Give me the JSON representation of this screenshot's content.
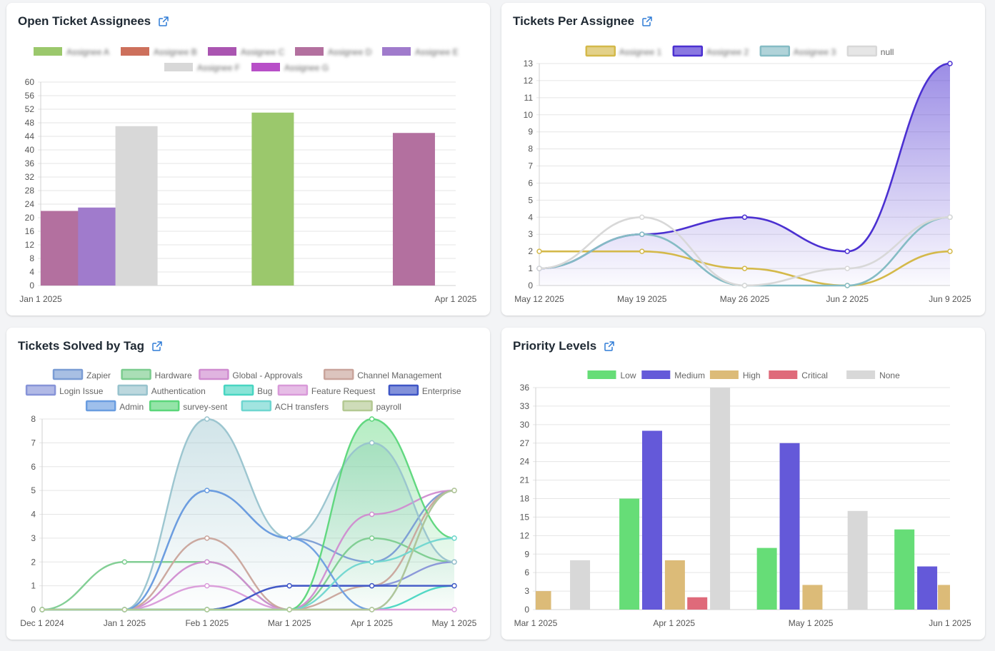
{
  "cards": [
    {
      "title": "Open Ticket Assignees"
    },
    {
      "title": "Tickets Per Assignee"
    },
    {
      "title": "Tickets Solved by Tag"
    },
    {
      "title": "Priority Levels"
    }
  ],
  "external_icon": "external-link-icon",
  "chart_data": [
    {
      "id": "chart-1",
      "type": "bar",
      "title": "Open Ticket Assignees",
      "legend": [
        {
          "label": "Assignee A",
          "color": "#9bc86c",
          "blurred": true
        },
        {
          "label": "Assignee B",
          "color": "#cd705c",
          "blurred": true
        },
        {
          "label": "Assignee C",
          "color": "#aa55b1",
          "blurred": true
        },
        {
          "label": "Assignee D",
          "color": "#b3709f",
          "blurred": true
        },
        {
          "label": "Assignee E",
          "color": "#a07bcc",
          "blurred": true
        },
        {
          "label": "Assignee F",
          "color": "#d8d8d8",
          "blurred": true
        },
        {
          "label": "Assignee G",
          "color": "#b84fc8",
          "blurred": true
        }
      ],
      "bars": [
        {
          "x": 0.0,
          "value": 22,
          "color": "#b3709f"
        },
        {
          "x": 0.09,
          "value": 23,
          "color": "#a07bcc"
        },
        {
          "x": 0.18,
          "value": 47,
          "color": "#d8d8d8"
        },
        {
          "x": 0.61,
          "value": 51,
          "color": "#9bc86c"
        },
        {
          "x": 0.95,
          "value": 45,
          "color": "#b3709f"
        }
      ],
      "xticks": [
        "Jan 1 2025",
        "Apr 1 2025"
      ],
      "ylim": [
        0,
        60
      ],
      "ystep": 4
    },
    {
      "id": "chart-2",
      "type": "line",
      "title": "Tickets Per Assignee",
      "categories": [
        "May 12 2025",
        "May 19 2025",
        "May 26 2025",
        "Jun 2 2025",
        "Jun 9 2025"
      ],
      "ylim": [
        0,
        13
      ],
      "ystep": 1,
      "series": [
        {
          "name": "Assignee 1",
          "color": "#d4b94a",
          "blurred": true,
          "values": [
            2,
            2,
            1,
            0,
            2
          ]
        },
        {
          "name": "Assignee 2",
          "color": "#4b30d1",
          "blurred": true,
          "values": [
            1,
            3,
            4,
            2,
            13
          ],
          "fill": true
        },
        {
          "name": "Assignee 3",
          "color": "#85bcc4",
          "blurred": true,
          "values": [
            1,
            3,
            0,
            0,
            4
          ]
        },
        {
          "name": "null",
          "color": "#d8d8d8",
          "blurred": false,
          "values": [
            1,
            4,
            0,
            1,
            4
          ]
        }
      ]
    },
    {
      "id": "chart-3",
      "type": "line",
      "title": "Tickets Solved by Tag",
      "categories": [
        "Dec 1 2024",
        "Jan 1 2025",
        "Feb 1 2025",
        "Mar 1 2025",
        "Apr 1 2025",
        "May 1 2025"
      ],
      "ylim": [
        0,
        8
      ],
      "ystep": 1,
      "series": [
        {
          "name": "Zapier",
          "color": "#7a9cd4",
          "values": [
            0,
            0,
            5,
            3,
            2,
            5
          ]
        },
        {
          "name": "Hardware",
          "color": "#7ccc8f",
          "values": [
            0,
            2,
            2,
            0,
            3,
            2
          ]
        },
        {
          "name": "Global - Approvals",
          "color": "#d08cd0",
          "values": [
            0,
            0,
            2,
            0,
            4,
            5
          ]
        },
        {
          "name": "Channel Management",
          "color": "#c9a49b",
          "values": [
            0,
            0,
            3,
            0,
            1,
            5
          ]
        },
        {
          "name": "Login Issue",
          "color": "#8794d8",
          "values": [
            0,
            0,
            0,
            1,
            1,
            2
          ]
        },
        {
          "name": "Authentication",
          "color": "#98c3cd",
          "values": [
            0,
            0,
            8,
            3,
            7,
            2
          ],
          "fill": true
        },
        {
          "name": "Bug",
          "color": "#49d6c2",
          "values": [
            0,
            0,
            0,
            0,
            0,
            1
          ]
        },
        {
          "name": "Feature Request",
          "color": "#d99ad9",
          "values": [
            0,
            0,
            1,
            0,
            0,
            0
          ]
        },
        {
          "name": "Enterprise",
          "color": "#3f56c6",
          "values": [
            0,
            0,
            0,
            1,
            1,
            1
          ]
        },
        {
          "name": "Admin",
          "color": "#6a9de0",
          "values": [
            0,
            0,
            5,
            3,
            0,
            5
          ]
        },
        {
          "name": "survey-sent",
          "color": "#5bd67a",
          "values": [
            0,
            0,
            0,
            0,
            8,
            3
          ],
          "fill": true
        },
        {
          "name": "ACH transfers",
          "color": "#6fd6d0",
          "values": [
            0,
            0,
            0,
            0,
            2,
            3
          ]
        },
        {
          "name": "payroll",
          "color": "#b4c993",
          "values": [
            0,
            0,
            0,
            0,
            0,
            5
          ]
        }
      ]
    },
    {
      "id": "chart-4",
      "type": "bar",
      "title": "Priority Levels",
      "series": [
        {
          "name": "Low",
          "color": "#66dd77"
        },
        {
          "name": "Medium",
          "color": "#6459d9"
        },
        {
          "name": "High",
          "color": "#dcbb78"
        },
        {
          "name": "Critical",
          "color": "#df6a7a"
        },
        {
          "name": "None",
          "color": "#d8d8d8"
        }
      ],
      "xticks": [
        "Mar 1 2025",
        "Apr 1 2025",
        "May 1 2025",
        "Jun 1 2025"
      ],
      "bars": [
        {
          "x": 0.013,
          "value": 3,
          "series": "High"
        },
        {
          "x": 0.107,
          "value": 8,
          "series": "None"
        },
        {
          "x": 0.226,
          "value": 18,
          "series": "Low"
        },
        {
          "x": 0.281,
          "value": 29,
          "series": "Medium"
        },
        {
          "x": 0.336,
          "value": 8,
          "series": "High"
        },
        {
          "x": 0.39,
          "value": 2,
          "series": "Critical"
        },
        {
          "x": 0.445,
          "value": 36,
          "series": "None"
        },
        {
          "x": 0.558,
          "value": 10,
          "series": "Low"
        },
        {
          "x": 0.613,
          "value": 27,
          "series": "Medium"
        },
        {
          "x": 0.668,
          "value": 4,
          "series": "High"
        },
        {
          "x": 0.777,
          "value": 16,
          "series": "None"
        },
        {
          "x": 0.89,
          "value": 13,
          "series": "Low"
        },
        {
          "x": 0.945,
          "value": 7,
          "series": "Medium"
        },
        {
          "x": 0.995,
          "value": 4,
          "series": "High"
        }
      ],
      "ylim": [
        0,
        36
      ],
      "ystep": 3
    }
  ]
}
